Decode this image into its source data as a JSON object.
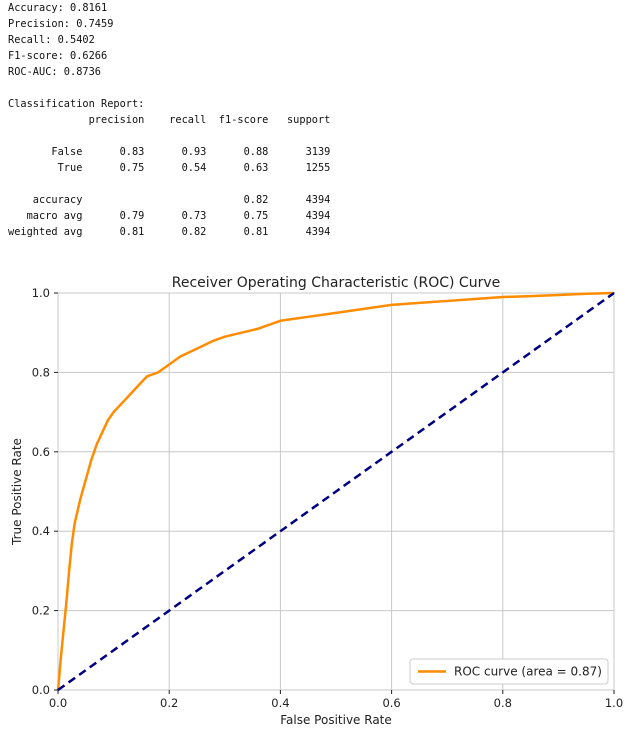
{
  "metrics": [
    {
      "label": "Accuracy",
      "value": "0.8161"
    },
    {
      "label": "Precision",
      "value": "0.7459"
    },
    {
      "label": "Recall",
      "value": "0.5402"
    },
    {
      "label": "F1-score",
      "value": "0.6266"
    },
    {
      "label": "ROC-AUC",
      "value": "0.8736"
    }
  ],
  "report": {
    "title": "Classification Report:",
    "columns": [
      "precision",
      "recall",
      "f1-score",
      "support"
    ],
    "class_rows": [
      {
        "name": "False",
        "cells": [
          "0.83",
          "0.93",
          "0.88",
          "3139"
        ]
      },
      {
        "name": "True",
        "cells": [
          "0.75",
          "0.54",
          "0.63",
          "1255"
        ]
      }
    ],
    "summary_rows": [
      {
        "name": "accuracy",
        "cells": [
          "",
          "",
          "0.82",
          "4394"
        ]
      },
      {
        "name": "macro avg",
        "cells": [
          "0.79",
          "0.73",
          "0.75",
          "4394"
        ]
      },
      {
        "name": "weighted avg",
        "cells": [
          "0.81",
          "0.82",
          "0.81",
          "4394"
        ]
      }
    ]
  },
  "chart_data": {
    "type": "line",
    "title": "Receiver Operating Characteristic (ROC) Curve",
    "xlabel": "False Positive Rate",
    "ylabel": "True Positive Rate",
    "xlim": [
      0.0,
      1.0
    ],
    "ylim": [
      0.0,
      1.0
    ],
    "xticks": [
      0.0,
      0.2,
      0.4,
      0.6,
      0.8,
      1.0
    ],
    "yticks": [
      0.0,
      0.2,
      0.4,
      0.6,
      0.8,
      1.0
    ],
    "xtick_labels": [
      "0.0",
      "0.2",
      "0.4",
      "0.6",
      "0.8",
      "1.0"
    ],
    "ytick_labels": [
      "0.0",
      "0.2",
      "0.4",
      "0.6",
      "0.8",
      "1.0"
    ],
    "grid": true,
    "legend_position": "lower-right",
    "series": [
      {
        "name": "ROC curve (area = 0.87)",
        "color": "#ff8c00",
        "style": "solid",
        "x": [
          0.0,
          0.002,
          0.005,
          0.01,
          0.015,
          0.02,
          0.025,
          0.03,
          0.04,
          0.05,
          0.06,
          0.07,
          0.08,
          0.09,
          0.1,
          0.12,
          0.14,
          0.16,
          0.18,
          0.2,
          0.22,
          0.25,
          0.28,
          0.3,
          0.33,
          0.36,
          0.4,
          0.45,
          0.5,
          0.55,
          0.6,
          0.65,
          0.7,
          0.75,
          0.8,
          0.85,
          0.9,
          0.95,
          1.0
        ],
        "y": [
          0.0,
          0.03,
          0.08,
          0.15,
          0.22,
          0.3,
          0.37,
          0.42,
          0.48,
          0.53,
          0.58,
          0.62,
          0.65,
          0.68,
          0.7,
          0.73,
          0.76,
          0.79,
          0.8,
          0.82,
          0.84,
          0.86,
          0.88,
          0.89,
          0.9,
          0.91,
          0.93,
          0.94,
          0.95,
          0.96,
          0.97,
          0.975,
          0.98,
          0.985,
          0.99,
          0.992,
          0.995,
          0.998,
          1.0
        ]
      },
      {
        "name": "",
        "color": "#000080",
        "style": "dashed",
        "x": [
          0.0,
          1.0
        ],
        "y": [
          0.0,
          1.0
        ]
      }
    ]
  }
}
